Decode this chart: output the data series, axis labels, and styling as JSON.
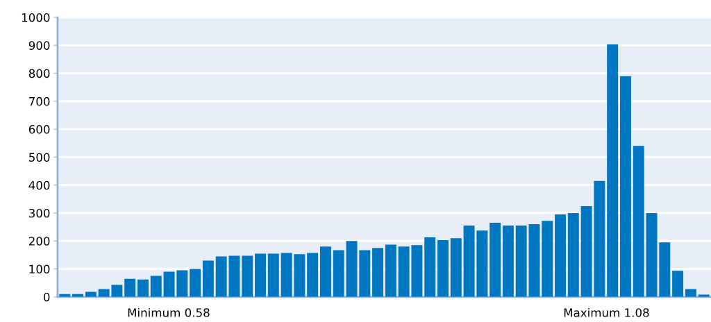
{
  "chart_data": {
    "type": "bar",
    "categories": [
      null,
      null,
      null,
      null,
      null,
      null,
      null,
      null,
      null,
      null,
      null,
      null,
      null,
      null,
      null,
      null,
      null,
      null,
      null,
      null,
      null,
      null,
      null,
      null,
      null,
      null,
      null,
      null,
      null,
      null,
      null,
      null,
      null,
      null,
      null,
      null,
      null,
      null,
      null,
      null,
      null,
      null,
      null,
      null,
      null,
      null,
      null,
      null,
      null,
      null
    ],
    "values": [
      10,
      10,
      18,
      28,
      43,
      65,
      62,
      75,
      90,
      95,
      100,
      130,
      145,
      147,
      147,
      155,
      155,
      157,
      153,
      157,
      180,
      167,
      200,
      167,
      175,
      187,
      180,
      185,
      213,
      203,
      210,
      255,
      237,
      265,
      255,
      255,
      260,
      272,
      295,
      300,
      325,
      415,
      903,
      790,
      540,
      300,
      195,
      93,
      28,
      8
    ],
    "color": "#0077c0",
    "ylim": [
      0,
      1000
    ],
    "yticks": [
      0,
      100,
      200,
      300,
      400,
      500,
      600,
      700,
      800,
      900,
      1000
    ],
    "grid": "y",
    "annotations": [
      "Minimum 0.58",
      "Maximum 1.08"
    ]
  }
}
